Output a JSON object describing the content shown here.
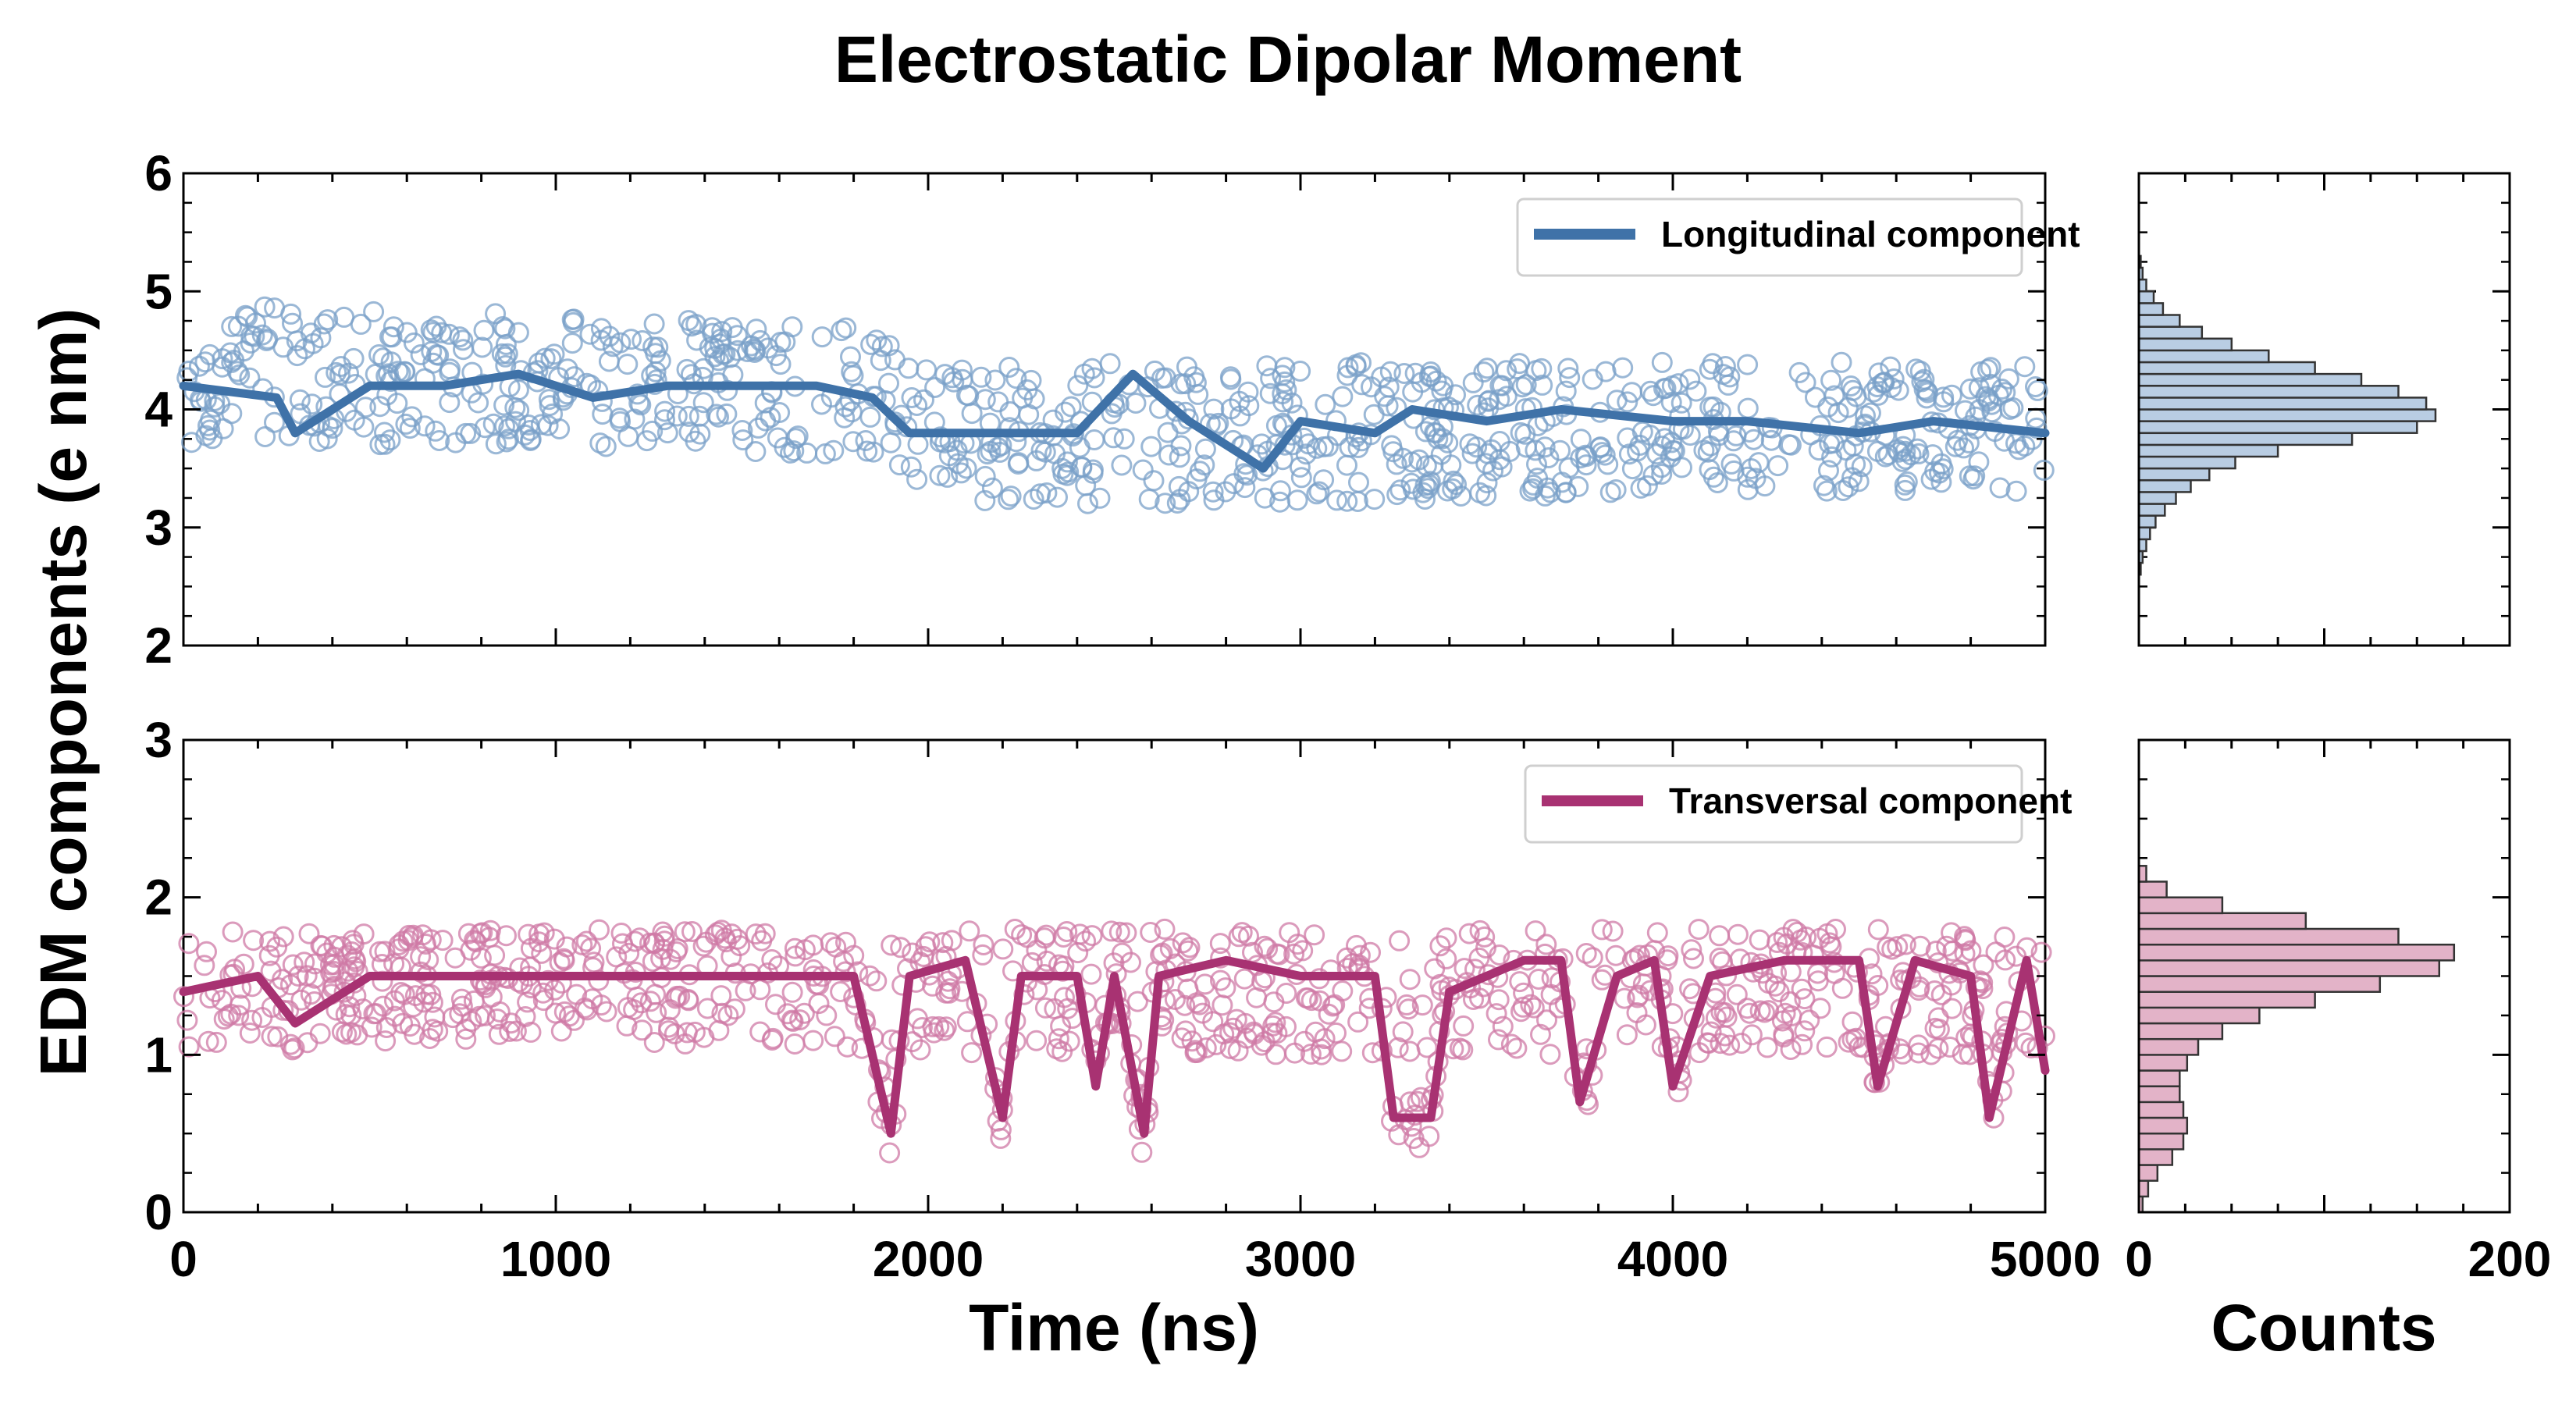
{
  "chart_data": {
    "type": "scatter",
    "title": "Electrostatic Dipolar Moment",
    "xlabel": "Time (ns)",
    "ylabel": "EDM components (e nm)",
    "hist_xlabel": "Counts",
    "x_range": [
      0,
      5000
    ],
    "x_ticks": [
      "0",
      "1000",
      "2000",
      "3000",
      "4000",
      "5000"
    ],
    "hist_x_range": [
      0,
      200
    ],
    "hist_x_ticks": [
      "0",
      "200"
    ],
    "panels": [
      {
        "series_name": "Longitudinal component",
        "ylim": [
          2,
          6
        ],
        "y_ticks": [
          "2",
          "3",
          "4",
          "5",
          "6"
        ],
        "scatter_color": "#7aa0c8",
        "line_color": "#3f72a8",
        "hist_fill": "#b9cde3",
        "legend_position": "top-right",
        "trend": [
          [
            0,
            4.2
          ],
          [
            250,
            4.1
          ],
          [
            300,
            3.8
          ],
          [
            500,
            4.2
          ],
          [
            700,
            4.2
          ],
          [
            900,
            4.3
          ],
          [
            1100,
            4.1
          ],
          [
            1300,
            4.2
          ],
          [
            1500,
            4.2
          ],
          [
            1700,
            4.2
          ],
          [
            1850,
            4.1
          ],
          [
            1950,
            3.8
          ],
          [
            2200,
            3.8
          ],
          [
            2400,
            3.8
          ],
          [
            2550,
            4.3
          ],
          [
            2700,
            3.9
          ],
          [
            2900,
            3.5
          ],
          [
            3000,
            3.9
          ],
          [
            3200,
            3.8
          ],
          [
            3300,
            4.0
          ],
          [
            3500,
            3.9
          ],
          [
            3700,
            4.0
          ],
          [
            4000,
            3.9
          ],
          [
            4200,
            3.9
          ],
          [
            4500,
            3.8
          ],
          [
            4700,
            3.9
          ],
          [
            5000,
            3.8
          ]
        ],
        "scatter_band": [
          [
            0,
            3.7,
            4.9
          ],
          [
            1000,
            3.7,
            4.8
          ],
          [
            1850,
            3.6,
            4.7
          ],
          [
            2000,
            3.2,
            4.4
          ],
          [
            3000,
            3.2,
            4.4
          ],
          [
            4000,
            3.3,
            4.4
          ],
          [
            5000,
            3.3,
            4.4
          ]
        ],
        "hist_bins": [
          [
            2.65,
            1
          ],
          [
            2.75,
            2
          ],
          [
            2.85,
            4
          ],
          [
            2.95,
            6
          ],
          [
            3.05,
            9
          ],
          [
            3.15,
            14
          ],
          [
            3.25,
            20
          ],
          [
            3.35,
            28
          ],
          [
            3.45,
            38
          ],
          [
            3.55,
            52
          ],
          [
            3.65,
            75
          ],
          [
            3.75,
            115
          ],
          [
            3.85,
            150
          ],
          [
            3.95,
            160
          ],
          [
            4.05,
            155
          ],
          [
            4.15,
            140
          ],
          [
            4.25,
            120
          ],
          [
            4.35,
            95
          ],
          [
            4.45,
            70
          ],
          [
            4.55,
            50
          ],
          [
            4.65,
            34
          ],
          [
            4.75,
            22
          ],
          [
            4.85,
            13
          ],
          [
            4.95,
            8
          ],
          [
            5.05,
            4
          ],
          [
            5.15,
            2
          ],
          [
            5.25,
            1
          ]
        ]
      },
      {
        "series_name": "Transversal component",
        "ylim": [
          0,
          3
        ],
        "y_ticks": [
          "0",
          "1",
          "2",
          "3"
        ],
        "scatter_color": "#cf7aa5",
        "line_color": "#a83272",
        "hist_fill": "#e3b3c8",
        "legend_position": "top-right",
        "trend": [
          [
            0,
            1.4
          ],
          [
            200,
            1.5
          ],
          [
            300,
            1.2
          ],
          [
            500,
            1.5
          ],
          [
            800,
            1.5
          ],
          [
            1000,
            1.5
          ],
          [
            1200,
            1.5
          ],
          [
            1400,
            1.5
          ],
          [
            1600,
            1.5
          ],
          [
            1800,
            1.5
          ],
          [
            1900,
            0.5
          ],
          [
            1950,
            1.5
          ],
          [
            2100,
            1.6
          ],
          [
            2200,
            0.6
          ],
          [
            2250,
            1.5
          ],
          [
            2400,
            1.5
          ],
          [
            2450,
            0.8
          ],
          [
            2500,
            1.5
          ],
          [
            2580,
            0.5
          ],
          [
            2620,
            1.5
          ],
          [
            2800,
            1.6
          ],
          [
            3000,
            1.5
          ],
          [
            3200,
            1.5
          ],
          [
            3250,
            0.6
          ],
          [
            3350,
            0.6
          ],
          [
            3400,
            1.4
          ],
          [
            3500,
            1.5
          ],
          [
            3600,
            1.6
          ],
          [
            3700,
            1.6
          ],
          [
            3750,
            0.7
          ],
          [
            3850,
            1.5
          ],
          [
            3950,
            1.6
          ],
          [
            4000,
            0.8
          ],
          [
            4100,
            1.5
          ],
          [
            4300,
            1.6
          ],
          [
            4500,
            1.6
          ],
          [
            4550,
            0.8
          ],
          [
            4650,
            1.6
          ],
          [
            4800,
            1.5
          ],
          [
            4850,
            0.6
          ],
          [
            4950,
            1.6
          ],
          [
            5000,
            0.9
          ]
        ],
        "scatter_band": [
          [
            0,
            1.0,
            1.8
          ],
          [
            1000,
            1.1,
            1.8
          ],
          [
            2000,
            1.0,
            1.8
          ],
          [
            3000,
            1.0,
            1.8
          ],
          [
            4000,
            1.0,
            1.8
          ],
          [
            5000,
            1.0,
            1.8
          ]
        ],
        "hist_bins": [
          [
            0.05,
            2
          ],
          [
            0.15,
            5
          ],
          [
            0.25,
            10
          ],
          [
            0.35,
            18
          ],
          [
            0.45,
            24
          ],
          [
            0.55,
            26
          ],
          [
            0.65,
            24
          ],
          [
            0.75,
            22
          ],
          [
            0.85,
            22
          ],
          [
            0.95,
            26
          ],
          [
            1.05,
            32
          ],
          [
            1.15,
            45
          ],
          [
            1.25,
            65
          ],
          [
            1.35,
            95
          ],
          [
            1.45,
            130
          ],
          [
            1.55,
            162
          ],
          [
            1.65,
            170
          ],
          [
            1.75,
            140
          ],
          [
            1.85,
            90
          ],
          [
            1.95,
            45
          ],
          [
            2.05,
            15
          ],
          [
            2.15,
            4
          ]
        ]
      }
    ]
  }
}
